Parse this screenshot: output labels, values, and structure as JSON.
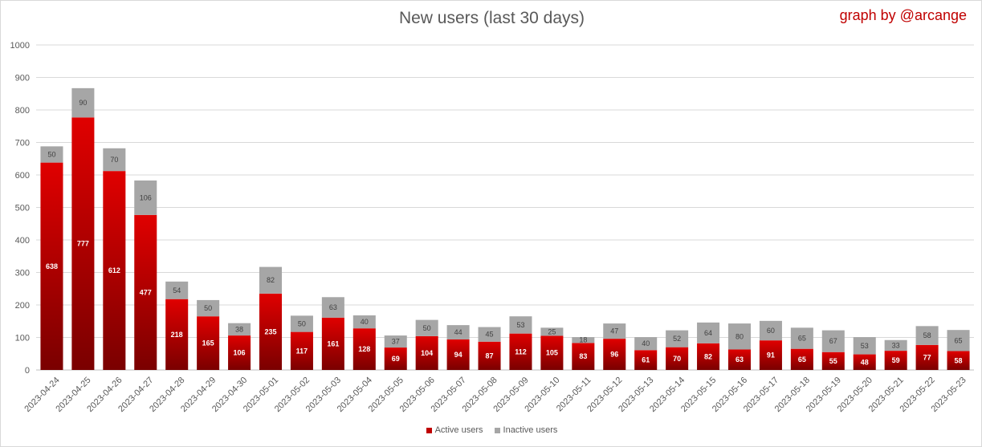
{
  "chart_data": {
    "type": "bar",
    "stacked": true,
    "title": "New users (last 30 days)",
    "credit": "graph by @arcange",
    "categories": [
      "2023-04-24",
      "2023-04-25",
      "2023-04-26",
      "2023-04-27",
      "2023-04-28",
      "2023-04-29",
      "2023-04-30",
      "2023-05-01",
      "2023-05-02",
      "2023-05-03",
      "2023-05-04",
      "2023-05-05",
      "2023-05-06",
      "2023-05-07",
      "2023-05-08",
      "2023-05-09",
      "2023-05-10",
      "2023-05-11",
      "2023-05-12",
      "2023-05-13",
      "2023-05-14",
      "2023-05-15",
      "2023-05-16",
      "2023-05-17",
      "2023-05-18",
      "2023-05-19",
      "2023-05-20",
      "2023-05-21",
      "2023-05-22",
      "2023-05-23"
    ],
    "series": [
      {
        "name": "Active users",
        "color": "#c00000",
        "values": [
          638,
          777,
          612,
          477,
          218,
          165,
          106,
          235,
          117,
          161,
          128,
          69,
          104,
          94,
          87,
          112,
          105,
          83,
          96,
          61,
          70,
          82,
          63,
          91,
          65,
          55,
          48,
          59,
          77,
          58
        ]
      },
      {
        "name": "Inactive users",
        "color": "#a6a6a6",
        "values": [
          50,
          90,
          70,
          106,
          54,
          50,
          38,
          82,
          50,
          63,
          40,
          37,
          50,
          44,
          45,
          53,
          25,
          18,
          47,
          40,
          52,
          64,
          80,
          60,
          65,
          67,
          53,
          33,
          58,
          65
        ]
      }
    ],
    "ylim": [
      0,
      1000
    ],
    "yticks": [
      0,
      100,
      200,
      300,
      400,
      500,
      600,
      700,
      800,
      900,
      1000
    ],
    "grid": true,
    "legend_position": "bottom"
  }
}
